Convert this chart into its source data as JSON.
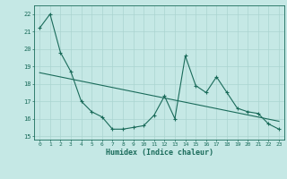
{
  "x": [
    0,
    1,
    2,
    3,
    4,
    5,
    6,
    7,
    8,
    9,
    10,
    11,
    12,
    13,
    14,
    15,
    16,
    17,
    18,
    19,
    20,
    21,
    22,
    23
  ],
  "y_main": [
    21.2,
    22.0,
    19.8,
    18.7,
    17.0,
    16.4,
    16.1,
    15.4,
    15.4,
    15.5,
    15.6,
    16.2,
    17.3,
    16.0,
    19.6,
    17.9,
    17.5,
    18.4,
    17.5,
    16.6,
    16.4,
    16.3,
    15.7,
    15.4
  ],
  "trend_x": [
    0,
    23
  ],
  "bg_color": "#c5e8e5",
  "grid_color": "#aad4d0",
  "line_color": "#1a6b5a",
  "xlabel": "Humidex (Indice chaleur)",
  "ylim": [
    14.8,
    22.5
  ],
  "xlim": [
    -0.5,
    23.5
  ],
  "yticks": [
    15,
    16,
    17,
    18,
    19,
    20,
    21,
    22
  ],
  "xticks": [
    0,
    1,
    2,
    3,
    4,
    5,
    6,
    7,
    8,
    9,
    10,
    11,
    12,
    13,
    14,
    15,
    16,
    17,
    18,
    19,
    20,
    21,
    22,
    23
  ],
  "marker": "+",
  "marker_size": 3,
  "linewidth": 0.8
}
